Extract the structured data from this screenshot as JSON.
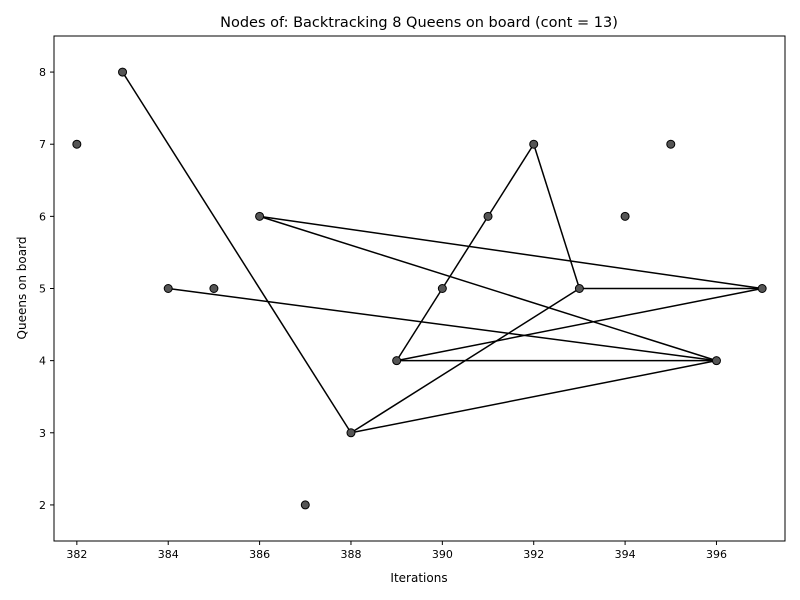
{
  "chart_data": {
    "type": "scatter",
    "title": "Nodes of: Backtracking 8 Queens on board (cont = 13)",
    "xlabel": "Iterations",
    "ylabel": "Queens on board",
    "xlim": [
      381.5,
      397.5
    ],
    "ylim": [
      1.5,
      8.5
    ],
    "xticks": [
      382,
      384,
      386,
      388,
      390,
      392,
      394,
      396
    ],
    "yticks": [
      2,
      3,
      4,
      5,
      6,
      7,
      8
    ],
    "grid": false,
    "legend": "none",
    "colors": {
      "marker_fill": "#555555",
      "marker_edge": "#000000",
      "line": "#000000"
    },
    "points": [
      {
        "x": 382,
        "y": 7
      },
      {
        "x": 383,
        "y": 8
      },
      {
        "x": 384,
        "y": 5
      },
      {
        "x": 385,
        "y": 5
      },
      {
        "x": 386,
        "y": 6
      },
      {
        "x": 387,
        "y": 2
      },
      {
        "x": 388,
        "y": 3
      },
      {
        "x": 389,
        "y": 4
      },
      {
        "x": 390,
        "y": 5
      },
      {
        "x": 391,
        "y": 6
      },
      {
        "x": 392,
        "y": 7
      },
      {
        "x": 393,
        "y": 5
      },
      {
        "x": 394,
        "y": 6
      },
      {
        "x": 395,
        "y": 7
      },
      {
        "x": 396,
        "y": 4
      },
      {
        "x": 397,
        "y": 5
      }
    ],
    "edges": [
      [
        383,
        388
      ],
      [
        388,
        393
      ],
      [
        388,
        396
      ],
      [
        384,
        396
      ],
      [
        386,
        396
      ],
      [
        386,
        397
      ],
      [
        389,
        390
      ],
      [
        390,
        391
      ],
      [
        391,
        392
      ],
      [
        392,
        393
      ],
      [
        393,
        397
      ],
      [
        389,
        397
      ],
      [
        389,
        396
      ]
    ]
  }
}
